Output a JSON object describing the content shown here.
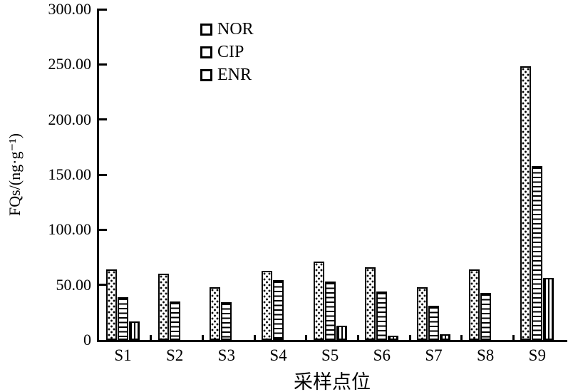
{
  "figure": {
    "background": "#ffffff",
    "ink": "#000000"
  },
  "chart_data": {
    "type": "bar",
    "categories": [
      "S1",
      "S2",
      "S3",
      "S4",
      "S5",
      "S6",
      "S7",
      "S8",
      "S9"
    ],
    "series": [
      {
        "name": "NOR",
        "pattern": "dots",
        "values": [
          64,
          60,
          48,
          63,
          71,
          66,
          48,
          64,
          248
        ]
      },
      {
        "name": "CIP",
        "pattern": "hlines",
        "values": [
          39,
          35,
          34,
          54,
          53,
          44,
          31,
          43,
          158
        ]
      },
      {
        "name": "ENR",
        "pattern": "vlines",
        "values": [
          17,
          0,
          0,
          0,
          13,
          4,
          5,
          0,
          56
        ]
      }
    ],
    "xlabel": "采样点位",
    "ylabel": "FQs/(ng·g⁻¹)",
    "ylim": [
      0,
      300
    ],
    "ytick_step": 50,
    "yticks": [
      {
        "value": 0,
        "label": "0"
      },
      {
        "value": 50,
        "label": "50.00"
      },
      {
        "value": 100,
        "label": "100.00"
      },
      {
        "value": 150,
        "label": "150.00"
      },
      {
        "value": 200,
        "label": "200.00"
      },
      {
        "value": 250,
        "label": "250.00"
      },
      {
        "value": 300,
        "label": "300.00"
      }
    ],
    "grid": false,
    "legend_position": "inside-top-center",
    "bar_fill": "#ffffff",
    "bar_edge": "#000000"
  }
}
